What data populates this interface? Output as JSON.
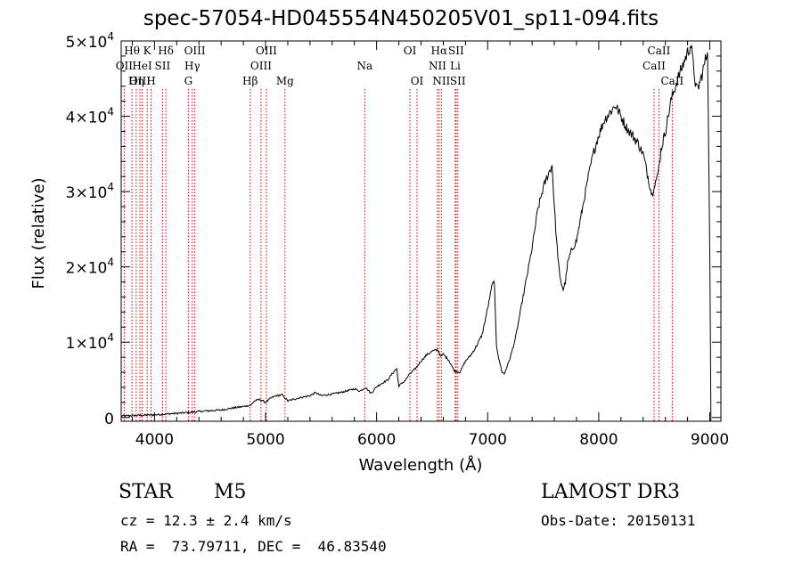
{
  "title": "spec-57054-HD045554N450205V01_sp11-094.fits",
  "info": {
    "object_class": "STAR",
    "subclass": "M5",
    "survey": "LAMOST DR3",
    "cz": "cz = 12.3 ± 2.4 km/s",
    "obs_date": "Obs-Date: 20150131",
    "coords": "RA =  73.79711, DEC =  46.83540"
  },
  "chart_data": {
    "type": "line",
    "title": "spec-57054-HD045554N450205V01_sp11-094.fits",
    "xlabel": "Wavelength (Å)",
    "ylabel": "Flux (relative)",
    "xlim": [
      3700,
      9100
    ],
    "ylim": [
      -500,
      50000
    ],
    "x_ticks": [
      4000,
      5000,
      6000,
      7000,
      8000,
      9000
    ],
    "x_tick_labels": [
      "4000",
      "5000",
      "6000",
      "7000",
      "8000",
      "9000"
    ],
    "y_ticks": [
      0,
      10000,
      20000,
      30000,
      40000,
      50000
    ],
    "y_tick_labels": [
      {
        "mant": "0",
        "exp": ""
      },
      {
        "mant": "1×10",
        "exp": "4"
      },
      {
        "mant": "2×10",
        "exp": "4"
      },
      {
        "mant": "3×10",
        "exp": "4"
      },
      {
        "mant": "4×10",
        "exp": "4"
      },
      {
        "mant": "5×10",
        "exp": "4"
      }
    ],
    "series": [
      {
        "name": "flux",
        "x": [
          3700,
          3800,
          3900,
          4000,
          4100,
          4200,
          4300,
          4400,
          4500,
          4600,
          4700,
          4800,
          4850,
          4870,
          4900,
          4950,
          5000,
          5050,
          5100,
          5150,
          5180,
          5200,
          5300,
          5400,
          5450,
          5500,
          5600,
          5700,
          5800,
          5850,
          5900,
          5950,
          6000,
          6100,
          6150,
          6180,
          6200,
          6250,
          6300,
          6350,
          6400,
          6450,
          6500,
          6550,
          6580,
          6600,
          6650,
          6700,
          6750,
          6800,
          6850,
          6900,
          6950,
          7000,
          7030,
          7050,
          7060,
          7080,
          7100,
          7130,
          7150,
          7200,
          7250,
          7300,
          7350,
          7400,
          7450,
          7500,
          7550,
          7580,
          7600,
          7620,
          7650,
          7680,
          7700,
          7720,
          7750,
          7800,
          7850,
          7900,
          7950,
          8000,
          8050,
          8100,
          8150,
          8200,
          8250,
          8300,
          8350,
          8400,
          8450,
          8480,
          8500,
          8530,
          8560,
          8600,
          8650,
          8700,
          8750,
          8800,
          8830,
          8850,
          8870,
          8880,
          8900,
          8930,
          8960,
          8980,
          9000,
          9010
        ],
        "y": [
          200,
          250,
          300,
          350,
          450,
          550,
          650,
          800,
          900,
          1000,
          1250,
          1450,
          1600,
          1650,
          2200,
          2400,
          2000,
          2600,
          2900,
          3000,
          2500,
          2200,
          2600,
          2900,
          3300,
          2900,
          3100,
          3400,
          3800,
          3500,
          4000,
          3200,
          4100,
          5000,
          6000,
          6500,
          4200,
          4800,
          5800,
          6500,
          7500,
          8300,
          8800,
          9000,
          8100,
          8400,
          7600,
          6200,
          6000,
          7500,
          8300,
          9500,
          11000,
          14500,
          16800,
          18200,
          17500,
          9500,
          7800,
          6000,
          5800,
          7800,
          10500,
          14500,
          18500,
          22500,
          27500,
          30500,
          32500,
          33500,
          28000,
          23500,
          18500,
          17000,
          18000,
          20500,
          22000,
          23500,
          27500,
          31500,
          35000,
          37500,
          39500,
          40500,
          41500,
          40000,
          38500,
          37500,
          36500,
          35000,
          31500,
          29500,
          31000,
          32000,
          35500,
          38000,
          42000,
          44500,
          46500,
          48500,
          49500,
          47000,
          44500,
          43500,
          44000,
          45500,
          47500,
          48500,
          22000,
          -500
        ]
      }
    ],
    "lines": [
      {
        "name": "Hθ",
        "wl": 3797,
        "row": 0
      },
      {
        "name": "OII",
        "wl": 3727,
        "row": 1
      },
      {
        "name": "OIII",
        "wl": 3869,
        "row": 2
      },
      {
        "name": "K",
        "wl": 3934,
        "row": 0
      },
      {
        "name": "HeI",
        "wl": 3889,
        "row": 1
      },
      {
        "name": "Hη",
        "wl": 3835,
        "row": 2
      },
      {
        "name": "H",
        "wl": 3969,
        "row": 2
      },
      {
        "name": "SII",
        "wl": 4072,
        "row": 1
      },
      {
        "name": "Hδ",
        "wl": 4102,
        "row": 0
      },
      {
        "name": "OIII",
        "wl": 4363,
        "row": 0
      },
      {
        "name": "Hγ",
        "wl": 4340,
        "row": 1
      },
      {
        "name": "G",
        "wl": 4305,
        "row": 2
      },
      {
        "name": "Hβ",
        "wl": 4861,
        "row": 2
      },
      {
        "name": "OIII",
        "wl": 5007,
        "row": 0
      },
      {
        "name": "OIII",
        "wl": 4959,
        "row": 1
      },
      {
        "name": "Mg",
        "wl": 5175,
        "row": 2
      },
      {
        "name": "Na",
        "wl": 5893,
        "row": 1
      },
      {
        "name": "OI",
        "wl": 6300,
        "row": 0
      },
      {
        "name": "OI",
        "wl": 6364,
        "row": 2
      },
      {
        "name": "Hα",
        "wl": 6563,
        "row": 0
      },
      {
        "name": "NII",
        "wl": 6548,
        "row": 1
      },
      {
        "name": "NII",
        "wl": 6583,
        "row": 2
      },
      {
        "name": "SII",
        "wl": 6716,
        "row": 0
      },
      {
        "name": "Li",
        "wl": 6708,
        "row": 1
      },
      {
        "name": "SII",
        "wl": 6731,
        "row": 2
      },
      {
        "name": "CaII",
        "wl": 8542,
        "row": 0
      },
      {
        "name": "CaII",
        "wl": 8498,
        "row": 1
      },
      {
        "name": "CaII",
        "wl": 8662,
        "row": 2
      }
    ]
  },
  "colors": {
    "line": "#000000",
    "marker": "#cc0000",
    "axis": "#000000",
    "background": "#ffffff"
  }
}
